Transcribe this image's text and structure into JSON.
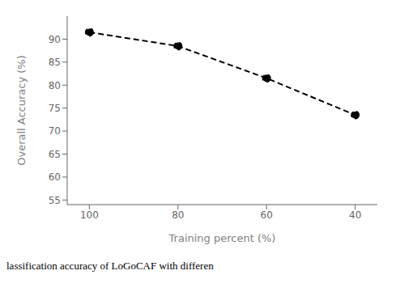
{
  "chart_data": {
    "type": "line",
    "x": [
      100,
      80,
      60,
      40
    ],
    "values": [
      91.5,
      88.5,
      81.5,
      73.5
    ],
    "xlabel": "Training percent (%)",
    "ylabel": "Overall Accuracy (%)",
    "caption": "lassification accuracy of LoGoCAF with differen",
    "xlim": [
      35,
      105
    ],
    "ylim": [
      54,
      95
    ],
    "xticks": [
      100,
      80,
      60,
      40
    ],
    "yticks": [
      55,
      60,
      65,
      70,
      75,
      80,
      85,
      90
    ],
    "color": "#000000",
    "line_style": "dashed",
    "marker": "circle",
    "grid": false
  }
}
